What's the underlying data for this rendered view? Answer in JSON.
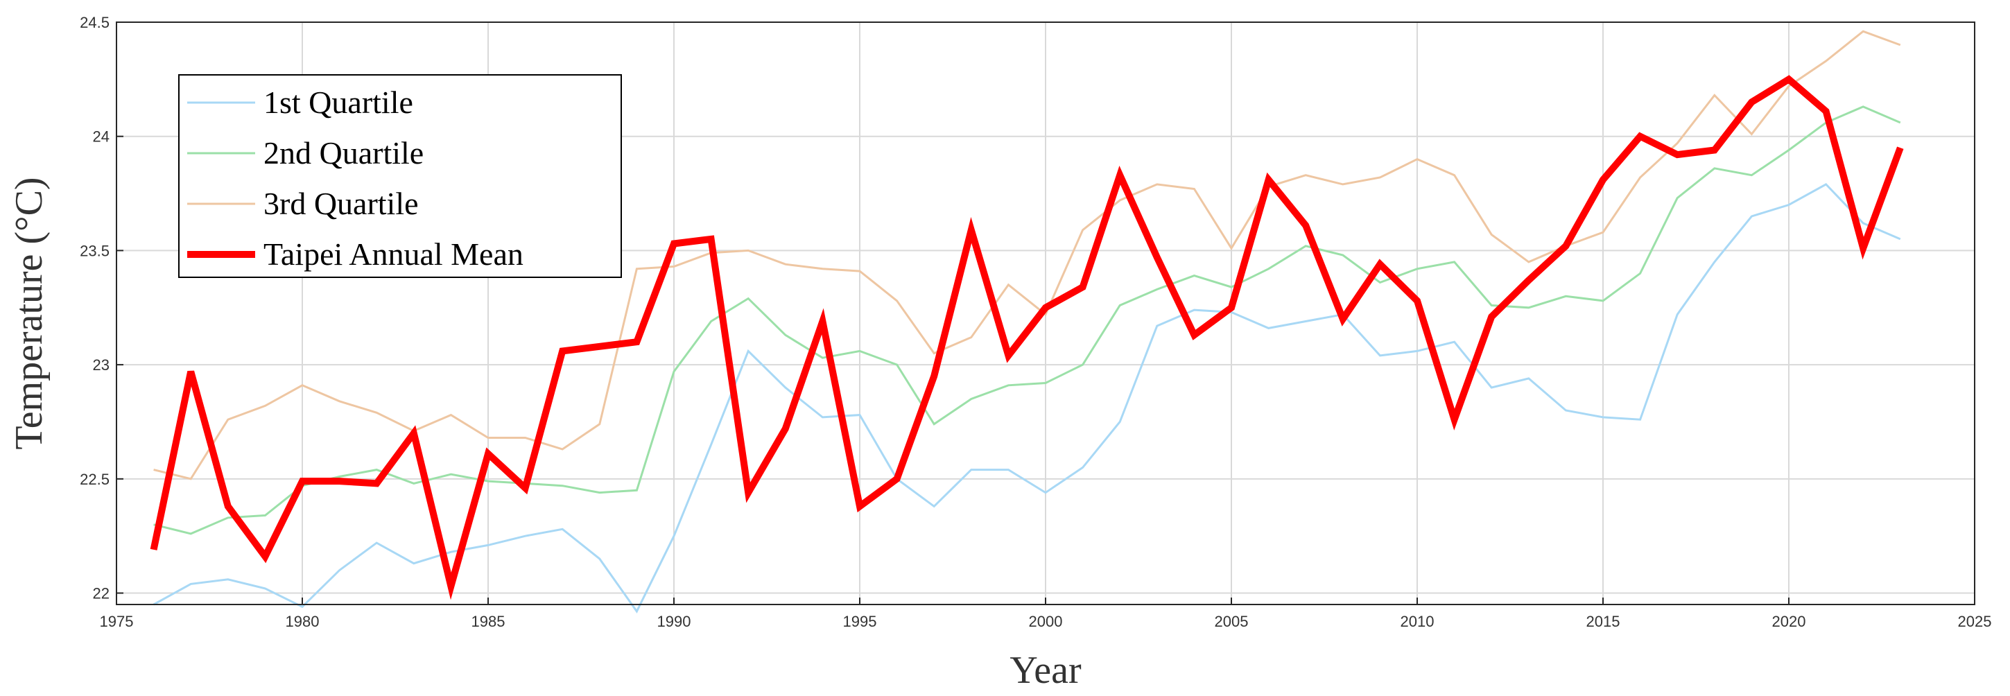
{
  "chart_data": {
    "type": "line",
    "title": "",
    "xlabel": "Year",
    "ylabel": "Temperature (°C)",
    "xlim": [
      1975,
      2025
    ],
    "ylim": [
      21.95,
      24.5
    ],
    "xticks": [
      1975,
      1980,
      1985,
      1990,
      1995,
      2000,
      2005,
      2010,
      2015,
      2020,
      2025
    ],
    "yticks": [
      22,
      22.5,
      23,
      23.5,
      24,
      24.5
    ],
    "xtick_labels": [
      "1975",
      "1980",
      "1985",
      "1990",
      "1995",
      "2000",
      "2005",
      "2010",
      "2015",
      "2020",
      "2025"
    ],
    "ytick_labels": [
      "22",
      "22.5",
      "23",
      "23.5",
      "24",
      "24.5"
    ],
    "grid": true,
    "legend_position": "top-left",
    "x": [
      1976,
      1977,
      1978,
      1979,
      1980,
      1981,
      1982,
      1983,
      1984,
      1985,
      1986,
      1987,
      1988,
      1989,
      1990,
      1991,
      1992,
      1993,
      1994,
      1995,
      1996,
      1997,
      1998,
      1999,
      2000,
      2001,
      2002,
      2003,
      2004,
      2005,
      2006,
      2007,
      2008,
      2009,
      2010,
      2011,
      2012,
      2013,
      2014,
      2015,
      2016,
      2017,
      2018,
      2019,
      2020,
      2021,
      2022,
      2023
    ],
    "series": [
      {
        "name": "1st Quartile",
        "color": "#a8d8f5",
        "width": 3,
        "values": [
          21.95,
          22.04,
          22.06,
          22.02,
          21.94,
          22.1,
          22.22,
          22.13,
          22.18,
          22.21,
          22.25,
          22.28,
          22.15,
          21.92,
          22.25,
          22.65,
          23.06,
          22.9,
          22.77,
          22.78,
          22.5,
          22.38,
          22.54,
          22.54,
          22.44,
          22.55,
          22.75,
          23.17,
          23.24,
          23.23,
          23.16,
          23.19,
          23.22,
          23.04,
          23.06,
          23.1,
          22.9,
          22.94,
          22.8,
          22.77,
          22.76,
          23.22,
          23.45,
          23.65,
          23.7,
          23.79,
          23.62,
          23.55
        ]
      },
      {
        "name": "2nd Quartile",
        "color": "#9be0a8",
        "width": 3,
        "values": [
          22.3,
          22.26,
          22.33,
          22.34,
          22.47,
          22.51,
          22.54,
          22.48,
          22.52,
          22.49,
          22.48,
          22.47,
          22.44,
          22.45,
          22.97,
          23.19,
          23.29,
          23.13,
          23.03,
          23.06,
          23.0,
          22.74,
          22.85,
          22.91,
          22.92,
          23.0,
          23.26,
          23.33,
          23.39,
          23.34,
          23.42,
          23.52,
          23.48,
          23.36,
          23.42,
          23.45,
          23.26,
          23.25,
          23.3,
          23.28,
          23.4,
          23.73,
          23.86,
          23.83,
          23.94,
          24.06,
          24.13,
          24.06
        ]
      },
      {
        "name": "3rd Quartile",
        "color": "#eec6a2",
        "width": 3,
        "values": [
          22.54,
          22.5,
          22.76,
          22.82,
          22.91,
          22.84,
          22.79,
          22.71,
          22.78,
          22.68,
          22.68,
          22.63,
          22.74,
          23.42,
          23.43,
          23.49,
          23.5,
          23.44,
          23.42,
          23.41,
          23.28,
          23.05,
          23.12,
          23.35,
          23.22,
          23.59,
          23.72,
          23.79,
          23.77,
          23.51,
          23.78,
          23.83,
          23.79,
          23.82,
          23.9,
          23.83,
          23.57,
          23.45,
          23.52,
          23.58,
          23.82,
          23.97,
          24.18,
          24.01,
          24.22,
          24.33,
          24.46,
          24.4
        ]
      },
      {
        "name": "Taipei Annual Mean",
        "color": "#ff0000",
        "width": 10,
        "values": [
          22.19,
          22.97,
          22.38,
          22.16,
          22.49,
          22.49,
          22.48,
          22.7,
          22.03,
          22.61,
          22.46,
          23.06,
          23.08,
          23.1,
          23.53,
          23.55,
          22.44,
          22.72,
          23.19,
          22.38,
          22.5,
          22.95,
          23.59,
          23.04,
          23.25,
          23.34,
          23.83,
          23.47,
          23.13,
          23.25,
          23.81,
          23.61,
          23.2,
          23.44,
          23.28,
          22.76,
          23.21,
          23.37,
          23.52,
          23.81,
          24.0,
          23.92,
          23.94,
          24.15,
          24.25,
          24.11,
          23.51,
          23.95
        ]
      }
    ]
  }
}
